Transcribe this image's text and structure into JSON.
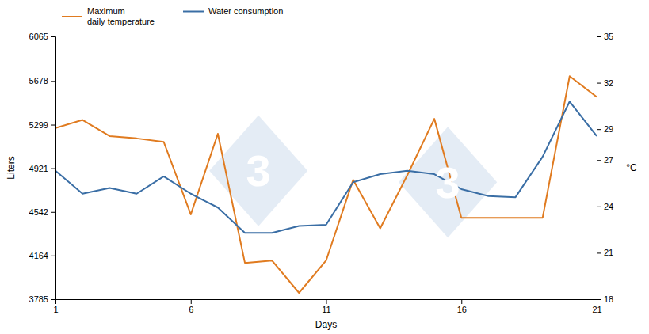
{
  "chart_data": {
    "type": "line",
    "x": [
      1,
      2,
      3,
      4,
      5,
      6,
      7,
      8,
      9,
      10,
      11,
      12,
      13,
      14,
      15,
      16,
      17,
      18,
      19,
      20,
      21
    ],
    "series": [
      {
        "name": "Maximum\ndaily temperature",
        "color": "#e07b20",
        "values": [
          5270,
          5340,
          5200,
          5180,
          5150,
          4520,
          5220,
          4100,
          4120,
          3840,
          4120,
          4820,
          4400,
          4860,
          5350,
          4490,
          4490,
          4490,
          4490,
          5720,
          5540
        ]
      },
      {
        "name": "Water consumption",
        "color": "#3a6ea5",
        "values": [
          4900,
          4700,
          4750,
          4700,
          4850,
          4700,
          4580,
          4360,
          4360,
          4420,
          4430,
          4800,
          4870,
          4900,
          4870,
          4740,
          4680,
          4670,
          5020,
          5500,
          5200
        ]
      }
    ],
    "xlabel": "Days",
    "ylabel": "Liters",
    "y2label": "°C",
    "xlim": [
      1,
      21
    ],
    "xticks": [
      1,
      6,
      11,
      16,
      21
    ],
    "ylim": [
      3785,
      6065
    ],
    "yticks": [
      3785,
      4164,
      4542,
      4921,
      5299,
      5678,
      6065
    ],
    "y2lim": [
      18,
      35
    ],
    "y2ticks": [
      18,
      21,
      24,
      27,
      29,
      32,
      35
    ],
    "annotations": [
      {
        "text": "3",
        "x": 8.5,
        "y": 4900,
        "color": "#c9d9eb"
      },
      {
        "text": "3",
        "x": 15.5,
        "y": 4800,
        "color": "#c9d9eb"
      }
    ],
    "legend": "upper left",
    "grid": false
  }
}
